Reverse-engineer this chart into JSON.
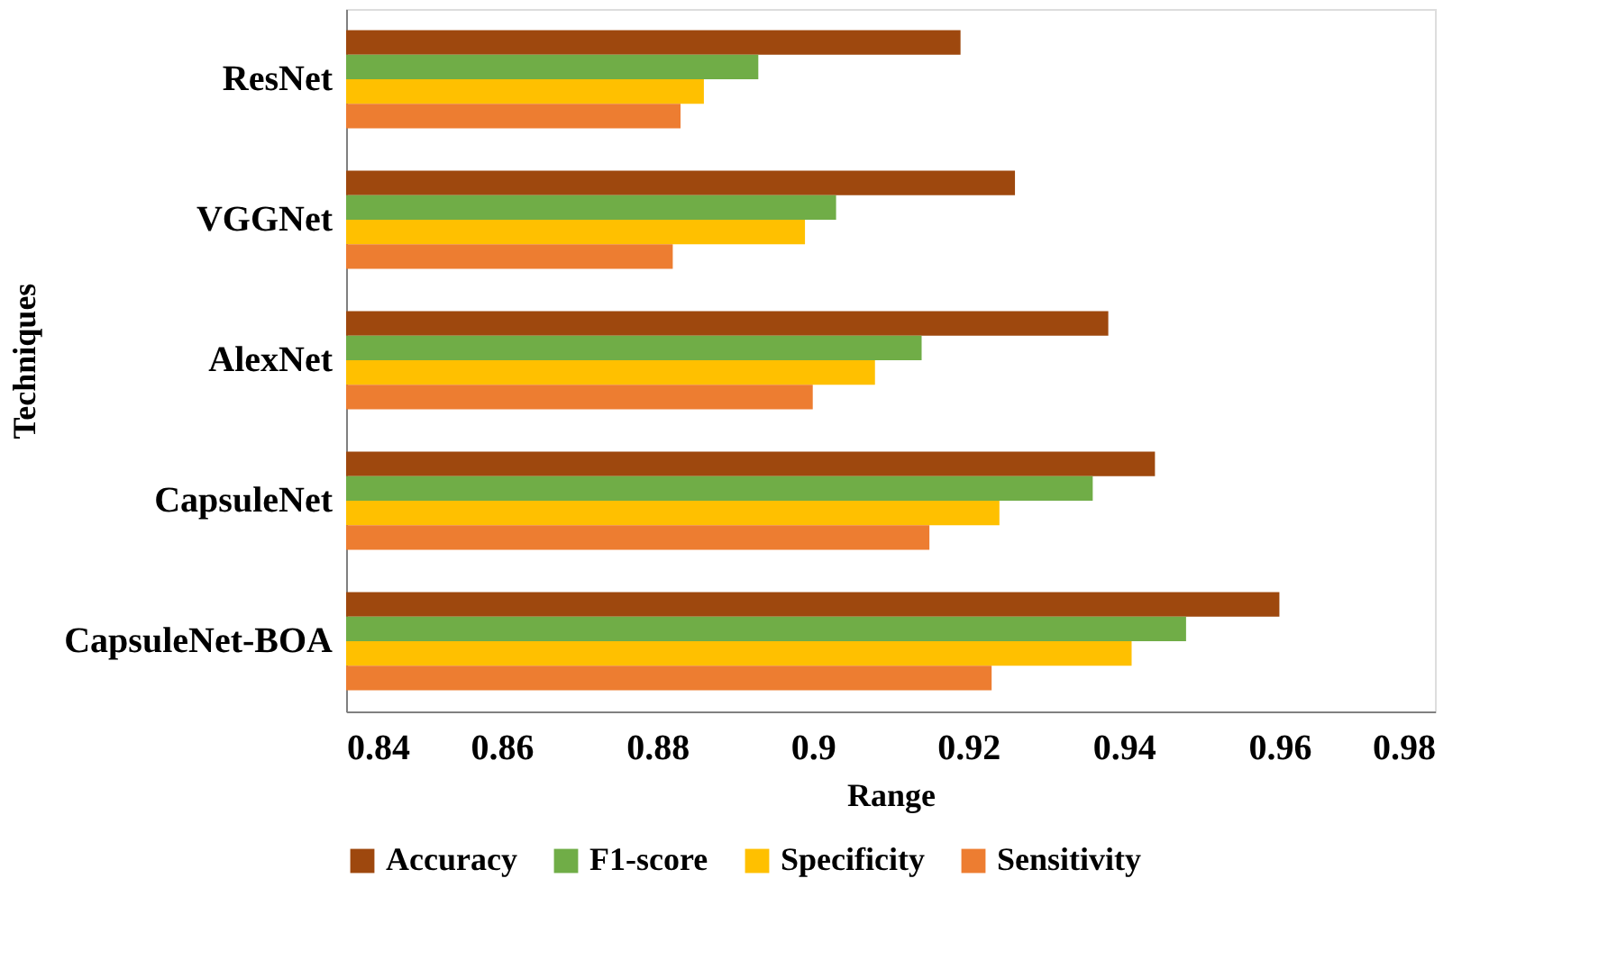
{
  "chart_data": {
    "type": "bar",
    "orientation": "horizontal",
    "xlabel": "Range",
    "ylabel": "Techniques",
    "categories": [
      "ResNet",
      "VGGNet",
      "AlexNet",
      "CapsuleNet",
      "CapsuleNet-BOA"
    ],
    "series": [
      {
        "name": "Accuracy",
        "color": "#9e480e",
        "values": [
          0.919,
          0.926,
          0.938,
          0.944,
          0.96
        ]
      },
      {
        "name": "F1-score",
        "color": "#70ad47",
        "values": [
          0.893,
          0.903,
          0.914,
          0.936,
          0.948
        ]
      },
      {
        "name": "Specificity",
        "color": "#ffc000",
        "values": [
          0.886,
          0.899,
          0.908,
          0.924,
          0.941
        ]
      },
      {
        "name": "Sensitivity",
        "color": "#ed7d31",
        "values": [
          0.883,
          0.882,
          0.9,
          0.915,
          0.923
        ]
      }
    ],
    "xlim": [
      0.84,
      0.98
    ],
    "xticks": [
      0.84,
      0.86,
      0.88,
      0.9,
      0.92,
      0.94,
      0.96,
      0.98
    ],
    "grid": false,
    "legend": "bottom"
  }
}
